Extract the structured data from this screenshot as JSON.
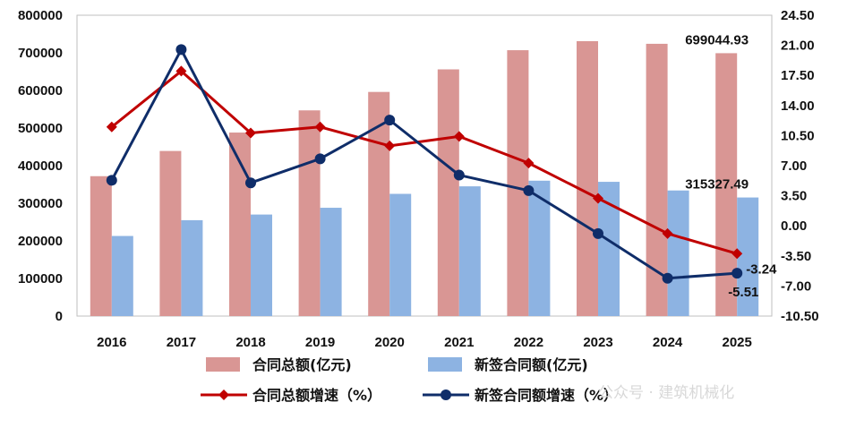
{
  "chart_data": {
    "type": "bar",
    "categories": [
      "2016",
      "2017",
      "2018",
      "2019",
      "2020",
      "2021",
      "2022",
      "2023",
      "2024",
      "2025"
    ],
    "left_axis": {
      "ylim": [
        0,
        800000
      ],
      "ticks": [
        "0",
        "100000",
        "200000",
        "300000",
        "400000",
        "500000",
        "600000",
        "700000",
        "800000"
      ]
    },
    "right_axis": {
      "ylim": [
        -10.5,
        24.5
      ],
      "ticks": [
        "-10.50",
        "-7.00",
        "-3.50",
        "0.00",
        "3.50",
        "7.00",
        "10.50",
        "14.00",
        "17.50",
        "21.00",
        "24.50"
      ]
    },
    "bar_series": [
      {
        "name": "合同总额(亿元)",
        "color": "#d99694",
        "axis": "left",
        "values": [
          372000,
          439000,
          488000,
          547000,
          596000,
          656000,
          707000,
          731000,
          724000,
          699044.93
        ]
      },
      {
        "name": "新签合同额(亿元)",
        "color": "#8db3e2",
        "axis": "left",
        "values": [
          213000,
          255000,
          270000,
          288000,
          325000,
          345000,
          360000,
          357000,
          334000,
          315327.49
        ]
      }
    ],
    "line_series": [
      {
        "name": "合同总额增速（%）",
        "color": "#c00000",
        "marker": "diamond",
        "axis": "right",
        "values": [
          11.5,
          18.0,
          10.8,
          11.5,
          9.3,
          10.4,
          7.3,
          3.2,
          -0.9,
          -3.24
        ]
      },
      {
        "name": "新签合同额增速（%）",
        "color": "#0f2d69",
        "marker": "circle",
        "axis": "right",
        "values": [
          5.3,
          20.5,
          5.0,
          7.8,
          12.3,
          5.9,
          4.1,
          -0.9,
          -6.1,
          -5.51
        ]
      }
    ],
    "data_labels": [
      {
        "text": "699044.93",
        "series": "合同总额(亿元)",
        "category": "2025"
      },
      {
        "text": "315327.49",
        "series": "新签合同额(亿元)",
        "category": "2025"
      },
      {
        "text": "-3.24",
        "series": "合同总额增速（%）",
        "category": "2025"
      },
      {
        "text": "-5.51",
        "series": "新签合同额增速（%）",
        "category": "2025"
      }
    ],
    "legend_position": "bottom",
    "grid": false
  },
  "watermark": "公众号 · 建筑机械化"
}
